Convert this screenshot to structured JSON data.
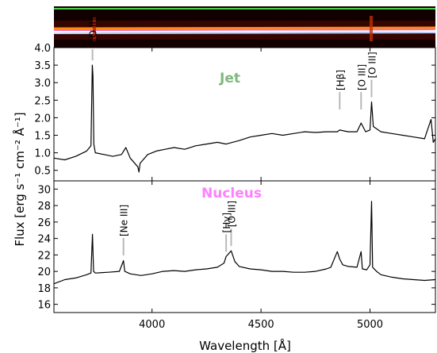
{
  "chart_data": [
    {
      "type": "line",
      "panel": "jet",
      "title": "Jet",
      "title_color": "#7fb87f",
      "xlim": [
        3550,
        5300
      ],
      "ylim": [
        0.2,
        4.0
      ],
      "yticks": [
        "0.5",
        "1.0",
        "1.5",
        "2.0",
        "2.5",
        "3.0",
        "3.5",
        "4.0"
      ],
      "line_color": "#000000",
      "marker_color": "#b8b8b8",
      "x": [
        3550,
        3600,
        3650,
        3700,
        3720,
        3726,
        3729,
        3733,
        3740,
        3780,
        3820,
        3860,
        3880,
        3900,
        3935,
        3940,
        3945,
        3980,
        4020,
        4060,
        4101,
        4150,
        4200,
        4250,
        4300,
        4340,
        4400,
        4450,
        4500,
        4550,
        4600,
        4650,
        4700,
        4750,
        4800,
        4850,
        4861,
        4900,
        4940,
        4959,
        4980,
        5000,
        5007,
        5015,
        5050,
        5100,
        5150,
        5200,
        5250,
        5280,
        5290,
        5300
      ],
      "y": [
        0.85,
        0.8,
        0.9,
        1.05,
        1.2,
        3.5,
        3.2,
        1.25,
        1.0,
        0.95,
        0.9,
        0.95,
        1.15,
        0.85,
        0.6,
        0.45,
        0.7,
        0.95,
        1.05,
        1.1,
        1.15,
        1.1,
        1.2,
        1.25,
        1.3,
        1.25,
        1.35,
        1.45,
        1.5,
        1.55,
        1.5,
        1.55,
        1.6,
        1.58,
        1.6,
        1.6,
        1.65,
        1.6,
        1.6,
        1.85,
        1.6,
        1.65,
        2.45,
        1.75,
        1.6,
        1.55,
        1.5,
        1.45,
        1.4,
        1.95,
        1.3,
        1.4
      ],
      "annotations": [
        {
          "label": "[O II]",
          "x": 3727
        },
        {
          "label": "[Hβ]",
          "x": 4861
        },
        {
          "label": "[O III]",
          "x": 4959
        },
        {
          "label": "[O III]",
          "x": 5007
        }
      ]
    },
    {
      "type": "line",
      "panel": "nucleus",
      "title": "Nucleus",
      "title_color": "#ff7fff",
      "xlim": [
        3550,
        5300
      ],
      "ylim": [
        15.0,
        31.0
      ],
      "yticks": [
        "16",
        "18",
        "20",
        "22",
        "24",
        "26",
        "28",
        "30"
      ],
      "xticks": [
        "4000",
        "4500",
        "5000"
      ],
      "line_color": "#000000",
      "marker_color": "#b8b8b8",
      "x": [
        3550,
        3600,
        3650,
        3700,
        3720,
        3727,
        3732,
        3740,
        3800,
        3850,
        3869,
        3875,
        3900,
        3950,
        4000,
        4050,
        4100,
        4150,
        4200,
        4250,
        4300,
        4330,
        4340,
        4363,
        4380,
        4400,
        4450,
        4500,
        4550,
        4600,
        4650,
        4700,
        4750,
        4800,
        4820,
        4850,
        4861,
        4875,
        4900,
        4940,
        4959,
        4965,
        4985,
        5000,
        5007,
        5012,
        5030,
        5050,
        5100,
        5150,
        5200,
        5250,
        5300
      ],
      "y": [
        18.5,
        19.0,
        19.2,
        19.6,
        19.8,
        24.5,
        20.0,
        19.8,
        19.9,
        20.0,
        21.3,
        20.0,
        19.7,
        19.5,
        19.7,
        20.0,
        20.1,
        20.0,
        20.2,
        20.3,
        20.5,
        21.0,
        21.8,
        22.5,
        21.2,
        20.6,
        20.3,
        20.2,
        20.0,
        20.0,
        19.9,
        19.9,
        20.0,
        20.3,
        20.5,
        22.4,
        21.5,
        20.8,
        20.6,
        20.5,
        22.4,
        20.3,
        20.2,
        20.8,
        28.5,
        20.5,
        20.0,
        19.6,
        19.3,
        19.1,
        19.0,
        18.9,
        19.0
      ],
      "annotations": [
        {
          "label": "[Ne III]",
          "x": 3869
        },
        {
          "label": "[Hγ]",
          "x": 4340
        },
        {
          "label": "[O III]",
          "x": 4363
        }
      ]
    }
  ],
  "axes": {
    "xlabel": "Wavelength [Å]",
    "ylabel": "Flux [erg s⁻¹ cm⁻² Å⁻¹]"
  },
  "spectrum_image": {
    "bg_color": "#120000",
    "top_line_color": "#4fd24f",
    "trace_colors": [
      "#ff8c00",
      "#ff69b4",
      "#ffffff",
      "#bcd4ff"
    ]
  }
}
